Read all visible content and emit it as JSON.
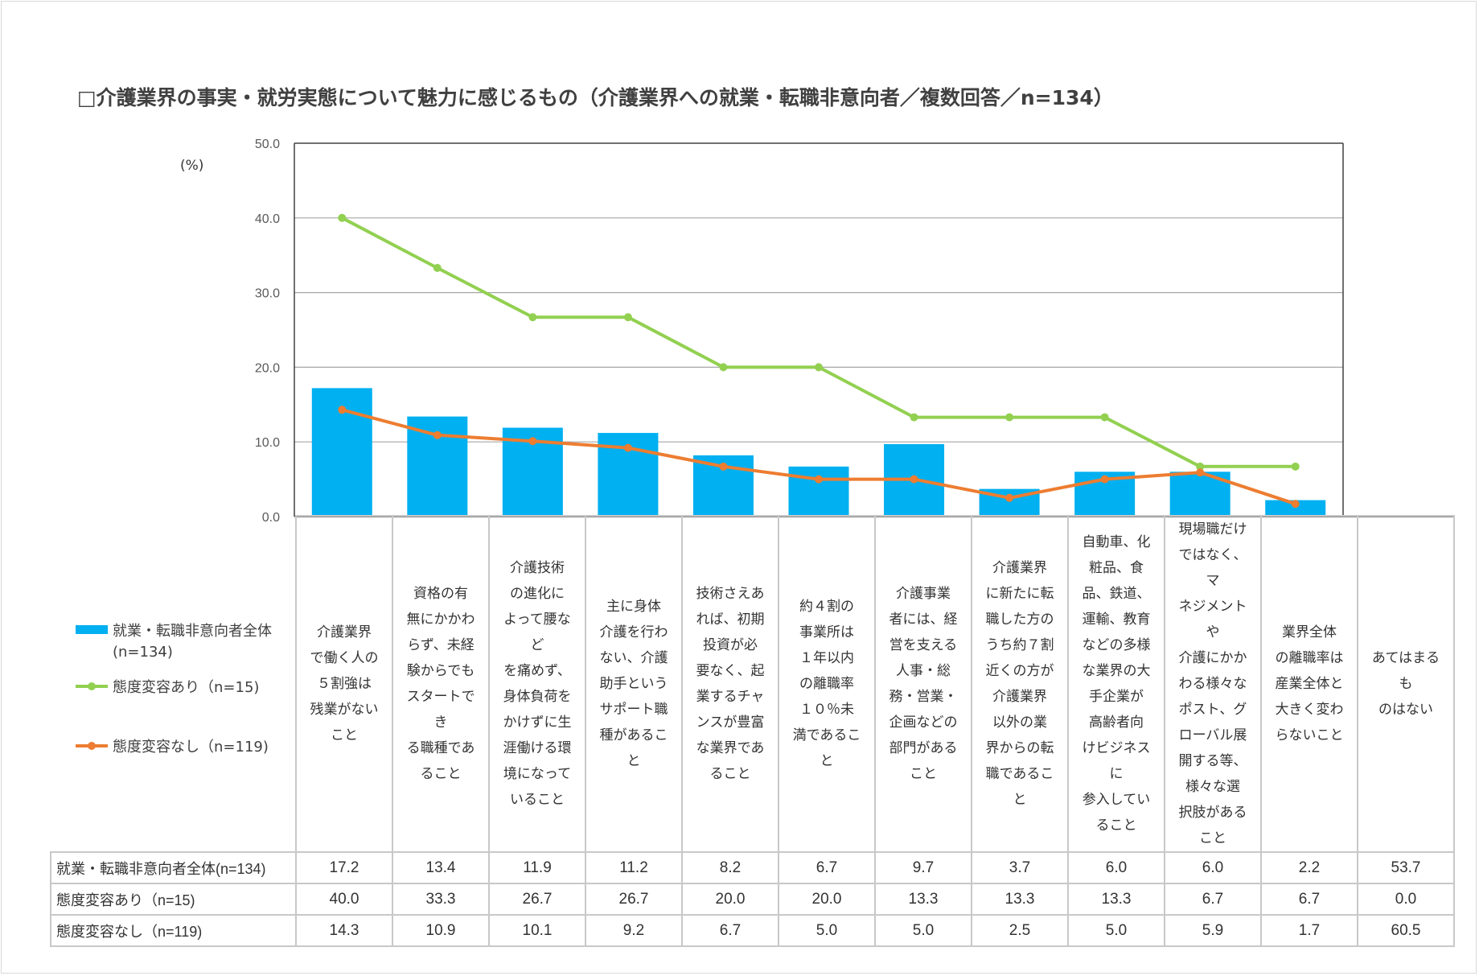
{
  "title": "□介護業界の事実・就労実態について魅力に感じるもの（介護業界への就業・転職非意向者／複数回答／n=134）",
  "unit_label": "(%)",
  "colors": {
    "bar": "#00b0f0",
    "series_changed": "#92d050",
    "series_unchanged": "#ed7d31",
    "grid": "#a6a6a6",
    "table_border": "#c8c8c8"
  },
  "chart_data": {
    "type": "bar",
    "title": "□介護業界の事実・就労実態について魅力に感じるもの（介護業界への就業・転職非意向者／複数回答／n=134）",
    "ylabel": "(%)",
    "ylim": [
      0,
      50
    ],
    "yticks": [
      "0.0",
      "10.0",
      "20.0",
      "30.0",
      "40.0",
      "50.0"
    ],
    "categories": [
      "介護業界で働く人の５割強は残業がないこと",
      "資格の有無にかかわらず、未経験からでもスタートできる職種であること",
      "介護技術の進化によって腰などを痛めず、身体負荷をかけずに生涯働ける環境になっていること",
      "主に身体介護を行わない、介護助手というサポート職種があること",
      "技術さえあれば、初期投資が必要なく、起業するチャンスが豊富な業界であること",
      "約４割の事業所は１年以内の離職率１０％未満であること",
      "介護事業者には、経営を支える人事・総務・営業・企画などの部門があること",
      "介護業界に新たに転職した方のうち約７割近くの方が介護業界以外の業界からの転職であること",
      "自動車、化粧品、食品、鉄道、運輸、教育などの多様な業界の大手企業が高齢者向けビジネスに参入していること",
      "現場職だけではなく、マネジメントや介護にかかわる様々なポスト、グローバル展開する等、様々な選択肢があること",
      "業界全体の離職率は産業全体と大きく変わらないこと",
      "あてはまるものはない"
    ],
    "category_lines": [
      [
        "介護業界",
        "で働く人の",
        "５割強は",
        "残業がない",
        "こと"
      ],
      [
        "資格の有",
        "無にかかわ",
        "らず、未経",
        "験からでも",
        "スタートでき",
        "る職種であ",
        "ること"
      ],
      [
        "介護技術",
        "の進化に",
        "よって腰など",
        "を痛めず、",
        "身体負荷を",
        "かけずに生",
        "涯働ける環",
        "境になって",
        "いること"
      ],
      [
        "主に身体",
        "介護を行わ",
        "ない、介護",
        "助手という",
        "サポート職",
        "種があること"
      ],
      [
        "技術さえあ",
        "れば、初期",
        "投資が必",
        "要なく、起",
        "業するチャ",
        "ンスが豊富",
        "な業界であ",
        "ること"
      ],
      [
        "約４割の",
        "事業所は",
        "１年以内",
        "の離職率",
        "１０％未",
        "満であること"
      ],
      [
        "介護事業",
        "者には、経",
        "営を支える",
        "人事・総",
        "務・営業・",
        "企画などの",
        "部門がある",
        "こと"
      ],
      [
        "介護業界",
        "に新たに転",
        "職した方の",
        "うち約７割",
        "近くの方が",
        "介護業界",
        "以外の業",
        "界からの転",
        "職であること"
      ],
      [
        "自動車、化",
        "粧品、食",
        "品、鉄道、",
        "運輸、教育",
        "などの多様",
        "な業界の大",
        "手企業が",
        "高齢者向",
        "けビジネスに",
        "参入してい",
        "ること"
      ],
      [
        "現場職だけ",
        "ではなく、マ",
        "ネジメントや",
        "介護にかか",
        "わる様々な",
        "ポスト、グ",
        "ローバル展",
        "開する等、",
        "様々な選",
        "択肢がある",
        "こと"
      ],
      [
        "業界全体",
        "の離職率は",
        "産業全体と",
        "大きく変わ",
        "らないこと"
      ],
      [
        "あてはまるも",
        "のはない"
      ]
    ],
    "series": [
      {
        "name": "就業・転職非意向者全体(n=134)",
        "legend": [
          "就業・転職非意向者全体",
          "(n=134)"
        ],
        "type": "bar",
        "values": [
          17.2,
          13.4,
          11.9,
          11.2,
          8.2,
          6.7,
          9.7,
          3.7,
          6.0,
          6.0,
          2.2,
          53.7
        ],
        "labels": [
          "17.2",
          "13.4",
          "11.9",
          "11.2",
          "8.2",
          "6.7",
          "9.7",
          "3.7",
          "6.0",
          "6.0",
          "2.2",
          "53.7"
        ]
      },
      {
        "name": "態度変容あり（n=15)",
        "legend": [
          "態度変容あり（n=15)"
        ],
        "type": "line",
        "values": [
          40.0,
          33.3,
          26.7,
          26.7,
          20.0,
          20.0,
          13.3,
          13.3,
          13.3,
          6.7,
          6.7,
          0.0
        ],
        "labels": [
          "40.0",
          "33.3",
          "26.7",
          "26.7",
          "20.0",
          "20.0",
          "13.3",
          "13.3",
          "13.3",
          "6.7",
          "6.7",
          "0.0"
        ]
      },
      {
        "name": "態度変容なし（n=119)",
        "legend": [
          "態度変容なし（n=119)"
        ],
        "type": "line",
        "values": [
          14.3,
          10.9,
          10.1,
          9.2,
          6.7,
          5.0,
          5.0,
          2.5,
          5.0,
          5.9,
          1.7,
          60.5
        ],
        "labels": [
          "14.3",
          "10.9",
          "10.1",
          "9.2",
          "6.7",
          "5.0",
          "5.0",
          "2.5",
          "5.0",
          "5.9",
          "1.7",
          "60.5"
        ]
      }
    ],
    "plotted_points": 11
  }
}
